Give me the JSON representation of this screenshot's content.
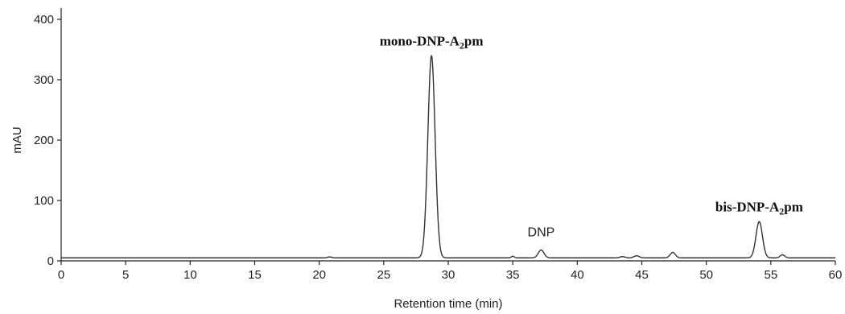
{
  "chart_data": {
    "type": "line",
    "xlabel": "Retention time (min)",
    "ylabel": "mAU",
    "xlim": [
      0,
      60
    ],
    "ylim": [
      0,
      400
    ],
    "x_ticks": [
      "0",
      "5",
      "10",
      "15",
      "20",
      "25",
      "30",
      "35",
      "40",
      "45",
      "50",
      "55",
      "60"
    ],
    "y_ticks": [
      "0",
      "100",
      "200",
      "300",
      "400"
    ],
    "grid": false,
    "baseline": 5,
    "series": [
      {
        "peaks": [
          {
            "x": 20.8,
            "height": 1.5,
            "width": 0.15
          },
          {
            "x": 28.7,
            "height": 335,
            "width": 0.28
          },
          {
            "x": 35.0,
            "height": 2.5,
            "width": 0.12
          },
          {
            "x": 37.2,
            "height": 13,
            "width": 0.22
          },
          {
            "x": 43.5,
            "height": 2,
            "width": 0.2
          },
          {
            "x": 44.6,
            "height": 3.5,
            "width": 0.2
          },
          {
            "x": 47.4,
            "height": 9,
            "width": 0.2
          },
          {
            "x": 54.1,
            "height": 60,
            "width": 0.25
          },
          {
            "x": 55.9,
            "height": 5,
            "width": 0.18
          }
        ]
      }
    ],
    "annotations": [
      {
        "id": "mono",
        "text_main": "mono-DNP-A",
        "text_sub": "2",
        "text_end": "pm",
        "x": 28.7,
        "y": 365
      },
      {
        "id": "dnp",
        "text": "DNP",
        "x": 37.2,
        "y": 49
      },
      {
        "id": "bis",
        "text_main": "bis-DNP-A",
        "text_sub": "2",
        "text_end": "pm",
        "x": 54.1,
        "y": 90
      }
    ]
  }
}
